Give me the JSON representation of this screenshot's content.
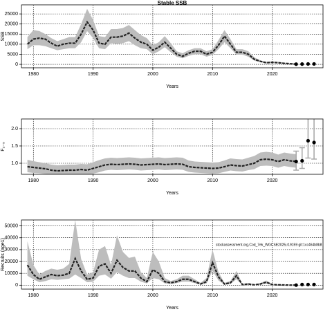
{
  "chart_data": [
    {
      "type": "line",
      "title": "Stable SSB",
      "xlabel": "Years",
      "ylabel": "SSB",
      "x": [
        1979,
        1980,
        1981,
        1982,
        1983,
        1984,
        1985,
        1986,
        1987,
        1988,
        1989,
        1990,
        1991,
        1992,
        1993,
        1994,
        1995,
        1996,
        1997,
        1998,
        1999,
        2000,
        2001,
        2002,
        2003,
        2004,
        2005,
        2006,
        2007,
        2008,
        2009,
        2010,
        2011,
        2012,
        2013,
        2014,
        2015,
        2016,
        2017,
        2018,
        2019,
        2020,
        2021,
        2022,
        2023,
        2024
      ],
      "values": [
        10000,
        12500,
        13000,
        12500,
        10500,
        9000,
        10000,
        10500,
        10500,
        15000,
        21000,
        17000,
        10500,
        10000,
        13500,
        13500,
        14000,
        15500,
        13000,
        11000,
        10000,
        7000,
        8500,
        11000,
        8000,
        5000,
        4000,
        5500,
        6500,
        6500,
        5000,
        6000,
        9500,
        14000,
        10000,
        6000,
        6000,
        5000,
        2500,
        1500,
        800,
        1000,
        800,
        500,
        300,
        100
      ],
      "upper": [
        13500,
        17000,
        16500,
        15000,
        13000,
        11500,
        12500,
        13500,
        13500,
        20000,
        27500,
        22000,
        14000,
        13500,
        17500,
        17500,
        18000,
        19500,
        17000,
        14500,
        13000,
        9500,
        11000,
        14000,
        10500,
        6500,
        5500,
        7000,
        8000,
        8000,
        6500,
        7500,
        12000,
        17000,
        12500,
        7500,
        7500,
        6500,
        3500,
        2000,
        1200,
        1400,
        1200,
        800,
        600,
        400
      ],
      "lower": [
        7500,
        9500,
        9500,
        9000,
        8000,
        7000,
        7500,
        8000,
        8000,
        11000,
        16500,
        13000,
        8000,
        7500,
        10500,
        10000,
        10500,
        11500,
        9500,
        8000,
        7500,
        5000,
        6500,
        8500,
        6000,
        3800,
        3000,
        4200,
        5000,
        5000,
        3800,
        4700,
        7500,
        11000,
        8000,
        4800,
        4800,
        3800,
        1800,
        1100,
        500,
        700,
        500,
        300,
        150,
        0
      ],
      "points_x": [
        2024,
        2025,
        2026,
        2027
      ],
      "points": [
        100,
        150,
        200,
        200
      ],
      "color": "#222222",
      "band_color": "#bdbdbd",
      "xlim": [
        1978,
        2028.5
      ],
      "xticks": [
        1980,
        1990,
        2000,
        2010,
        2020
      ],
      "ylim": [
        -1700,
        29500
      ],
      "yticks": [
        0,
        5000,
        10000,
        15000,
        20000,
        25000
      ],
      "grid": true
    },
    {
      "type": "line",
      "xlabel": "Years",
      "ylabel": "F₂₋₅",
      "x": [
        1979,
        1980,
        1981,
        1982,
        1983,
        1984,
        1985,
        1986,
        1987,
        1988,
        1989,
        1990,
        1991,
        1992,
        1993,
        1994,
        1995,
        1996,
        1997,
        1998,
        1999,
        2000,
        2001,
        2002,
        2003,
        2004,
        2005,
        2006,
        2007,
        2008,
        2009,
        2010,
        2011,
        2012,
        2013,
        2014,
        2015,
        2016,
        2017,
        2018,
        2019,
        2020,
        2021,
        2022,
        2023,
        2024
      ],
      "values": [
        0.9,
        0.88,
        0.86,
        0.84,
        0.8,
        0.78,
        0.79,
        0.8,
        0.8,
        0.82,
        0.8,
        0.85,
        0.9,
        0.95,
        0.97,
        0.96,
        0.97,
        0.98,
        0.97,
        0.95,
        0.96,
        0.97,
        0.98,
        0.96,
        0.97,
        0.98,
        0.97,
        0.9,
        0.88,
        0.87,
        0.86,
        0.85,
        0.86,
        0.9,
        0.95,
        0.93,
        0.92,
        0.96,
        1.0,
        1.1,
        1.12,
        1.1,
        1.05,
        1.1,
        1.07,
        1.05
      ],
      "upper": [
        1.1,
        1.06,
        1.03,
        1.0,
        0.96,
        0.94,
        0.95,
        0.96,
        0.96,
        0.98,
        0.97,
        1.03,
        1.09,
        1.14,
        1.16,
        1.15,
        1.16,
        1.17,
        1.16,
        1.14,
        1.15,
        1.16,
        1.17,
        1.15,
        1.16,
        1.17,
        1.16,
        1.08,
        1.05,
        1.04,
        1.03,
        1.02,
        1.03,
        1.08,
        1.14,
        1.12,
        1.11,
        1.16,
        1.21,
        1.31,
        1.33,
        1.31,
        1.25,
        1.31,
        1.28,
        1.26
      ],
      "lower": [
        0.74,
        0.72,
        0.71,
        0.69,
        0.66,
        0.64,
        0.65,
        0.66,
        0.66,
        0.68,
        0.66,
        0.7,
        0.74,
        0.79,
        0.81,
        0.8,
        0.81,
        0.82,
        0.81,
        0.79,
        0.8,
        0.81,
        0.82,
        0.8,
        0.81,
        0.82,
        0.81,
        0.75,
        0.73,
        0.72,
        0.71,
        0.7,
        0.71,
        0.75,
        0.79,
        0.77,
        0.76,
        0.8,
        0.83,
        0.92,
        0.93,
        0.92,
        0.87,
        0.92,
        0.89,
        0.87
      ],
      "points_x": [
        2024,
        2025,
        2026,
        2027
      ],
      "points": [
        1.05,
        1.07,
        1.65,
        1.6
      ],
      "points_low": [
        0.8,
        0.85,
        1.15,
        1.12
      ],
      "points_high": [
        1.35,
        1.45,
        2.3,
        2.3
      ],
      "color": "#222222",
      "band_color": "#bdbdbd",
      "error_color": "#aaaaaa",
      "xlim": [
        1978,
        2028.5
      ],
      "xticks": [
        1980,
        1990,
        2000,
        2010,
        2020
      ],
      "ylim": [
        0.68,
        2.28
      ],
      "yticks": [
        {
          "value": 1,
          "label": "1.0"
        },
        1.5,
        {
          "value": 2,
          "label": "2.0"
        }
      ],
      "grid": true
    },
    {
      "type": "line",
      "xlabel": "Years",
      "ylabel": "Recruits (age1)",
      "annotation": "stockassessment.org,Cod_7ek_WGCSE2025,r19159 git:1cc464b8b8",
      "x": [
        1979,
        1980,
        1981,
        1982,
        1983,
        1984,
        1985,
        1986,
        1987,
        1988,
        1989,
        1990,
        1991,
        1992,
        1993,
        1994,
        1995,
        1996,
        1997,
        1998,
        1999,
        2000,
        2001,
        2002,
        2003,
        2004,
        2005,
        2006,
        2007,
        2008,
        2009,
        2010,
        2011,
        2012,
        2013,
        2014,
        2015,
        2016,
        2017,
        2018,
        2019,
        2020,
        2021,
        2022,
        2023,
        2024
      ],
      "values": [
        17000,
        9000,
        5000,
        7000,
        9000,
        8000,
        8500,
        10000,
        22500,
        12000,
        5000,
        6000,
        16000,
        18000,
        10000,
        21000,
        15000,
        12000,
        12000,
        6000,
        3000,
        13000,
        10000,
        3000,
        2000,
        3000,
        5000,
        5000,
        3000,
        1000,
        3000,
        19000,
        7000,
        1000,
        2000,
        8000,
        500,
        1000,
        300,
        1000,
        2500,
        500,
        300,
        200,
        100,
        100
      ],
      "upper": [
        37000,
        17000,
        9000,
        12000,
        14000,
        13000,
        14000,
        18000,
        55000,
        22000,
        9000,
        11000,
        30000,
        33000,
        17000,
        42000,
        28000,
        23000,
        24000,
        11000,
        6000,
        28000,
        20000,
        6000,
        3500,
        5000,
        8000,
        8000,
        5000,
        2000,
        6000,
        30000,
        11000,
        2000,
        3500,
        12000,
        1000,
        1800,
        600,
        1800,
        4000,
        1000,
        600,
        500,
        300,
        300
      ],
      "lower": [
        8000,
        5000,
        2500,
        3500,
        5000,
        4500,
        5000,
        5500,
        9000,
        6000,
        2500,
        3000,
        8000,
        9000,
        5500,
        11000,
        8000,
        6000,
        6000,
        3000,
        1500,
        6000,
        5000,
        1500,
        1000,
        1800,
        3000,
        3000,
        1800,
        500,
        1500,
        12000,
        4000,
        500,
        1000,
        5000,
        200,
        500,
        100,
        500,
        1500,
        200,
        100,
        50,
        20,
        0
      ],
      "points_x": [
        2024,
        2025,
        2026,
        2027
      ],
      "points": [
        100,
        600,
        600,
        600
      ],
      "color": "#222222",
      "band_color": "#bdbdbd",
      "xlim": [
        1978,
        2028.5
      ],
      "xticks": [
        1980,
        1990,
        2000,
        2010,
        2020
      ],
      "ylim": [
        -3300,
        55000
      ],
      "yticks": [
        0,
        10000,
        20000,
        30000,
        40000,
        50000
      ],
      "grid": true
    }
  ]
}
